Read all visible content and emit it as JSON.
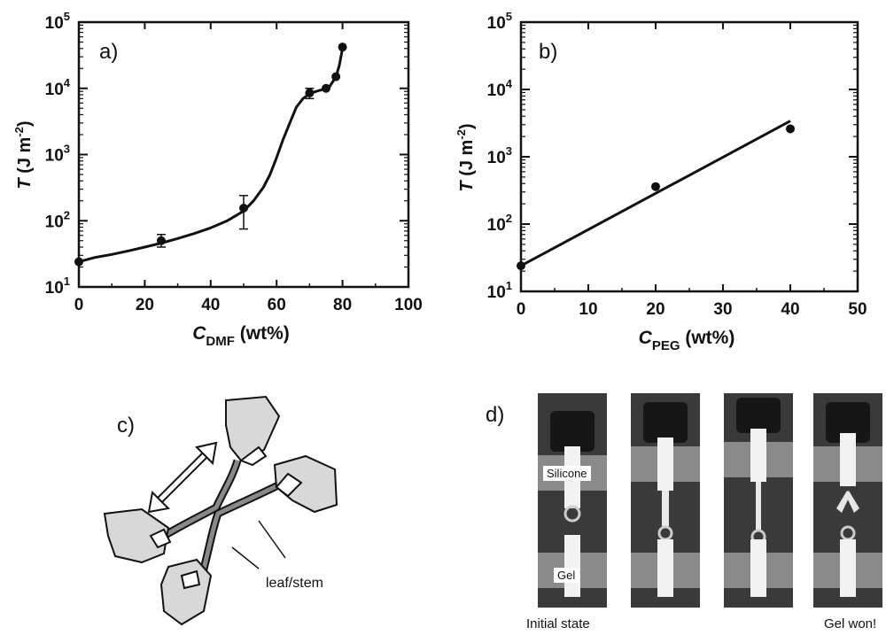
{
  "chart_data": [
    {
      "type": "scatter",
      "panel_label": "a)",
      "ylabel": "T (J m-2)",
      "xlabel": "CDMF (wt%)",
      "y_scale": "log",
      "xlim": [
        0,
        100
      ],
      "ylim": [
        10,
        100000
      ],
      "x_ticks": [
        "0",
        "20",
        "40",
        "60",
        "80",
        "100"
      ],
      "y_ticks": [
        "10^1",
        "10^2",
        "10^3",
        "10^4",
        "10^5"
      ],
      "points": [
        {
          "x": 0,
          "y": 24,
          "err_low": 24,
          "err_high": 24
        },
        {
          "x": 25,
          "y": 50,
          "err_low": 40,
          "err_high": 62
        },
        {
          "x": 50,
          "y": 155,
          "err_low": 75,
          "err_high": 240
        },
        {
          "x": 70,
          "y": 8500,
          "err_low": 7000,
          "err_high": 10000
        },
        {
          "x": 75,
          "y": 10000,
          "err_low": 10000,
          "err_high": 10000
        },
        {
          "x": 78,
          "y": 15000,
          "err_low": 15000,
          "err_high": 15000
        },
        {
          "x": 80,
          "y": 42000,
          "err_low": 42000,
          "err_high": 42000
        }
      ],
      "fit_curve": [
        [
          0,
          24
        ],
        [
          5,
          28
        ],
        [
          10,
          31
        ],
        [
          15,
          35
        ],
        [
          20,
          40
        ],
        [
          25,
          46
        ],
        [
          30,
          54
        ],
        [
          35,
          64
        ],
        [
          40,
          78
        ],
        [
          45,
          100
        ],
        [
          50,
          140
        ],
        [
          53,
          200
        ],
        [
          56,
          320
        ],
        [
          58,
          500
        ],
        [
          60,
          900
        ],
        [
          62,
          1700
        ],
        [
          64,
          3000
        ],
        [
          66,
          5200
        ],
        [
          68,
          7000
        ],
        [
          70,
          8300
        ],
        [
          72,
          9000
        ],
        [
          74,
          9600
        ],
        [
          76,
          10500
        ],
        [
          77,
          12500
        ],
        [
          78,
          15000
        ],
        [
          79,
          22000
        ],
        [
          80,
          40000
        ]
      ]
    },
    {
      "type": "scatter",
      "panel_label": "b)",
      "ylabel": "T (J m-2)",
      "xlabel": "CPEG (wt%)",
      "y_scale": "log",
      "xlim": [
        0,
        50
      ],
      "ylim": [
        10,
        100000
      ],
      "x_ticks": [
        "0",
        "10",
        "20",
        "30",
        "40",
        "50"
      ],
      "y_ticks": [
        "10^1",
        "10^2",
        "10^3",
        "10^4",
        "10^5"
      ],
      "points": [
        {
          "x": 0,
          "y": 24
        },
        {
          "x": 20,
          "y": 360
        },
        {
          "x": 40,
          "y": 2600
        }
      ],
      "fit_line": [
        [
          0,
          24
        ],
        [
          40,
          3400
        ]
      ]
    }
  ],
  "figures": {
    "c": {
      "label": "c)",
      "annotation": "leaf/stem"
    },
    "d": {
      "label": "d)",
      "silicone_tag": "Silicone",
      "gel_tag": "Gel",
      "caption_left": "Initial state",
      "caption_right": "Gel won!"
    }
  }
}
